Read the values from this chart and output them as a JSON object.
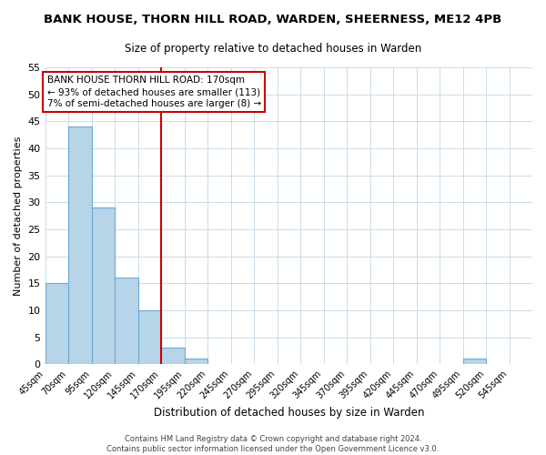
{
  "title": "BANK HOUSE, THORN HILL ROAD, WARDEN, SHEERNESS, ME12 4PB",
  "subtitle": "Size of property relative to detached houses in Warden",
  "xlabel": "Distribution of detached houses by size in Warden",
  "ylabel": "Number of detached properties",
  "bins": [
    45,
    70,
    95,
    120,
    145,
    170,
    195,
    220,
    245,
    270,
    295,
    320,
    345,
    370,
    395,
    420,
    445,
    470,
    495,
    520,
    545
  ],
  "bin_labels": [
    "45sqm",
    "70sqm",
    "95sqm",
    "120sqm",
    "145sqm",
    "170sqm",
    "195sqm",
    "220sqm",
    "245sqm",
    "270sqm",
    "295sqm",
    "320sqm",
    "345sqm",
    "370sqm",
    "395sqm",
    "420sqm",
    "445sqm",
    "470sqm",
    "495sqm",
    "520sqm",
    "545sqm"
  ],
  "counts": [
    15,
    44,
    29,
    16,
    10,
    3,
    1,
    0,
    0,
    0,
    0,
    0,
    0,
    0,
    0,
    0,
    0,
    0,
    1,
    0,
    0
  ],
  "bar_color": "#b8d4e8",
  "bar_edge_color": "#6aaad4",
  "vline_x": 170,
  "vline_color": "#cc0000",
  "ylim": [
    0,
    55
  ],
  "yticks": [
    0,
    5,
    10,
    15,
    20,
    25,
    30,
    35,
    40,
    45,
    50,
    55
  ],
  "annotation_title": "BANK HOUSE THORN HILL ROAD: 170sqm",
  "annotation_line1": "← 93% of detached houses are smaller (113)",
  "annotation_line2": "7% of semi-detached houses are larger (8) →",
  "annotation_box_color": "#ffffff",
  "annotation_box_edge": "#cc0000",
  "footer_line1": "Contains HM Land Registry data © Crown copyright and database right 2024.",
  "footer_line2": "Contains public sector information licensed under the Open Government Licence v3.0.",
  "background_color": "#ffffff",
  "grid_color": "#c8dcea"
}
